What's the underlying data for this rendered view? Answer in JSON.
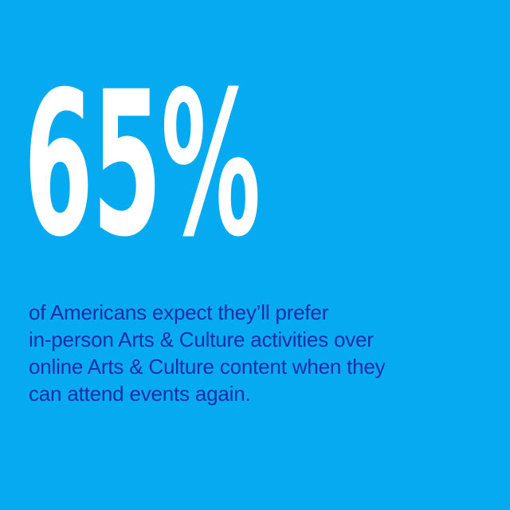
{
  "card": {
    "stat_value": "65%",
    "caption_lines": [
      "of Americans expect they’ll prefer",
      "in-person Arts & Culture activities over",
      "online Arts & Culture content when they",
      "can attend events again."
    ]
  },
  "colors": {
    "background": "#06aaf0",
    "stat_text": "#ffffff",
    "caption_text": "#1a2ea8"
  }
}
